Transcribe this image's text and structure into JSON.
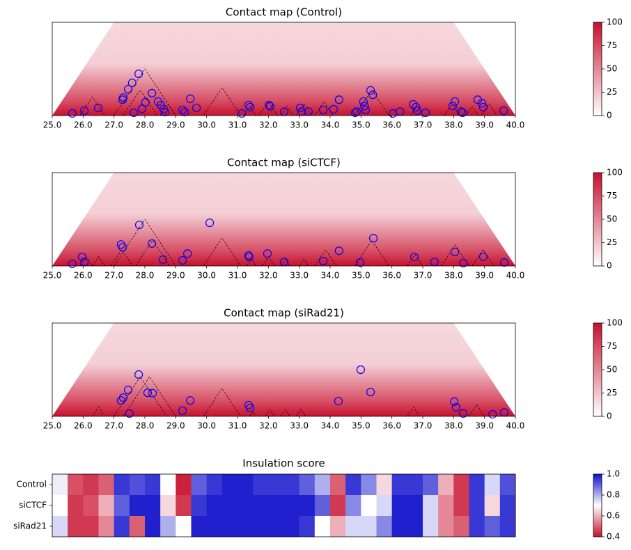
{
  "chart_data": [
    {
      "type": "contactmap",
      "title": "Contact map (Control)",
      "xlim": [
        25,
        40
      ],
      "xticks": [
        {
          "value": 25,
          "label": "25.0"
        },
        {
          "value": 26,
          "label": "26.0"
        },
        {
          "value": 27,
          "label": "27.0"
        },
        {
          "value": 28,
          "label": "28.0"
        },
        {
          "value": 29,
          "label": "29.0"
        },
        {
          "value": 30,
          "label": "30.0"
        },
        {
          "value": 31,
          "label": "31.0"
        },
        {
          "value": 32,
          "label": "32.0"
        },
        {
          "value": 33,
          "label": "33.0"
        },
        {
          "value": 34,
          "label": "34.0"
        },
        {
          "value": 35,
          "label": "35.0"
        },
        {
          "value": 36,
          "label": "36.0"
        },
        {
          "value": 37,
          "label": "37.0"
        },
        {
          "value": 38,
          "label": "38.0"
        },
        {
          "value": 39,
          "label": "39.0"
        },
        {
          "value": 40,
          "label": "40.0"
        }
      ],
      "ylim": [
        0,
        4
      ],
      "zlim": [
        0,
        100
      ],
      "zticks": [
        0,
        25,
        50,
        75,
        100
      ],
      "colormap": [
        "#ffffff",
        "#c8102e"
      ],
      "loops": {
        "color": "#0000ff",
        "x": [
          25.65,
          26.04,
          26.49,
          27.28,
          27.3,
          27.46,
          27.59,
          27.8,
          27.64,
          27.91,
          28.02,
          28.23,
          28.43,
          28.52,
          28.61,
          28.65,
          29.22,
          29.29,
          29.47,
          29.67,
          31.14,
          31.36,
          31.41,
          32.02,
          32.06,
          32.51,
          33.03,
          33.08,
          33.3,
          33.78,
          34.11,
          34.29,
          34.81,
          34.86,
          35.08,
          35.11,
          35.15,
          35.31,
          35.38,
          36.03,
          36.26,
          36.69,
          36.78,
          36.82,
          37.09,
          37.97,
          38.04,
          38.24,
          38.29,
          38.78,
          38.92,
          38.96,
          39.62
        ],
        "y": [
          0.09,
          0.21,
          0.33,
          0.68,
          0.77,
          1.13,
          1.4,
          1.79,
          0.12,
          0.29,
          0.57,
          0.96,
          0.6,
          0.45,
          0.27,
          0.15,
          0.24,
          0.15,
          0.72,
          0.33,
          0.09,
          0.45,
          0.36,
          0.45,
          0.39,
          0.17,
          0.33,
          0.17,
          0.17,
          0.24,
          0.27,
          0.68,
          0.12,
          0.17,
          0.6,
          0.41,
          0.24,
          1.08,
          0.89,
          0.09,
          0.17,
          0.48,
          0.36,
          0.21,
          0.12,
          0.41,
          0.6,
          0.17,
          0.12,
          0.68,
          0.53,
          0.36,
          0.21
        ]
      },
      "tads": [
        [
          25.9,
          26.7
        ],
        [
          27.0,
          29.0
        ],
        [
          27.3,
          28.4
        ],
        [
          28.5,
          29.0
        ],
        [
          29.9,
          31.1
        ],
        [
          31.2,
          31.6
        ],
        [
          31.7,
          32.3
        ],
        [
          32.4,
          32.8
        ],
        [
          32.9,
          33.4
        ],
        [
          33.5,
          34.1
        ],
        [
          34.8,
          35.9
        ],
        [
          36.6,
          37.0
        ],
        [
          37.7,
          38.2
        ],
        [
          38.4,
          38.8
        ],
        [
          38.9,
          39.4
        ]
      ]
    },
    {
      "type": "contactmap",
      "title": "Contact map (siCTCF)",
      "xlim": [
        25,
        40
      ],
      "xticks": [
        {
          "value": 25,
          "label": "25.0"
        },
        {
          "value": 26,
          "label": "26.0"
        },
        {
          "value": 27,
          "label": "27.0"
        },
        {
          "value": 28,
          "label": "28.0"
        },
        {
          "value": 29,
          "label": "29.0"
        },
        {
          "value": 30,
          "label": "30.0"
        },
        {
          "value": 31,
          "label": "31.0"
        },
        {
          "value": 32,
          "label": "32.0"
        },
        {
          "value": 33,
          "label": "33.0"
        },
        {
          "value": 34,
          "label": "34.0"
        },
        {
          "value": 35,
          "label": "35.0"
        },
        {
          "value": 36,
          "label": "36.0"
        },
        {
          "value": 37,
          "label": "37.0"
        },
        {
          "value": 38,
          "label": "38.0"
        },
        {
          "value": 39,
          "label": "39.0"
        },
        {
          "value": 40,
          "label": "40.0"
        }
      ],
      "ylim": [
        0,
        4
      ],
      "zlim": [
        0,
        100
      ],
      "zticks": [
        0,
        25,
        50,
        75,
        100
      ],
      "colormap": [
        "#ffffff",
        "#c8102e"
      ],
      "loops": {
        "color": "#0000ff",
        "x": [
          25.65,
          25.97,
          26.04,
          27.23,
          27.28,
          27.82,
          28.23,
          28.59,
          29.22,
          29.38,
          30.1,
          31.36,
          31.38,
          31.97,
          32.51,
          33.78,
          34.29,
          34.97,
          35.4,
          36.73,
          37.38,
          38.04,
          38.31,
          38.96,
          39.64
        ],
        "y": [
          0.09,
          0.39,
          0.17,
          0.92,
          0.8,
          1.76,
          0.96,
          0.27,
          0.24,
          0.53,
          1.85,
          0.45,
          0.39,
          0.53,
          0.17,
          0.21,
          0.65,
          0.15,
          1.19,
          0.39,
          0.17,
          0.6,
          0.12,
          0.39,
          0.15
        ]
      },
      "tads": [
        [
          25.9,
          26.3
        ],
        [
          26.3,
          26.7
        ],
        [
          26.9,
          27.6
        ],
        [
          27.7,
          28.8
        ],
        [
          27.0,
          29.0
        ],
        [
          29.9,
          31.1
        ],
        [
          31.3,
          31.6
        ],
        [
          31.8,
          32.2
        ],
        [
          32.4,
          32.7
        ],
        [
          33.0,
          33.3
        ],
        [
          33.5,
          34.2
        ],
        [
          34.8,
          35.9
        ],
        [
          36.5,
          37.0
        ],
        [
          37.6,
          38.5
        ],
        [
          38.6,
          39.3
        ]
      ]
    },
    {
      "type": "contactmap",
      "title": "Contact map (siRad21)",
      "xlim": [
        25,
        40
      ],
      "xticks": [
        {
          "value": 25,
          "label": "25.0"
        },
        {
          "value": 26,
          "label": "26.0"
        },
        {
          "value": 27,
          "label": "27.0"
        },
        {
          "value": 28,
          "label": "28.0"
        },
        {
          "value": 29,
          "label": "29.0"
        },
        {
          "value": 30,
          "label": "30.0"
        },
        {
          "value": 31,
          "label": "31.0"
        },
        {
          "value": 32,
          "label": "32.0"
        },
        {
          "value": 33,
          "label": "33.0"
        },
        {
          "value": 34,
          "label": "34.0"
        },
        {
          "value": 35,
          "label": "35.0"
        },
        {
          "value": 36,
          "label": "36.0"
        },
        {
          "value": 37,
          "label": "37.0"
        },
        {
          "value": 38,
          "label": "38.0"
        },
        {
          "value": 39,
          "label": "39.0"
        },
        {
          "value": 40,
          "label": "40.0"
        }
      ],
      "ylim": [
        0,
        4
      ],
      "zlim": [
        0,
        100
      ],
      "zticks": [
        0,
        25,
        50,
        75,
        100
      ],
      "colormap": [
        "#ffffff",
        "#c8102e"
      ],
      "loops": {
        "color": "#0000ff",
        "x": [
          27.23,
          27.3,
          27.46,
          27.8,
          27.5,
          28.09,
          28.25,
          29.22,
          29.47,
          31.36,
          31.41,
          34.27,
          34.99,
          35.31,
          38.02,
          38.08,
          38.31,
          39.26,
          39.64
        ],
        "y": [
          0.68,
          0.8,
          1.13,
          1.79,
          0.12,
          1.01,
          0.99,
          0.24,
          0.68,
          0.48,
          0.36,
          0.65,
          2.0,
          1.04,
          0.63,
          0.39,
          0.12,
          0.09,
          0.17
        ]
      },
      "tads": [
        [
          26.3,
          26.7
        ],
        [
          27.0,
          28.7
        ],
        [
          27.3,
          29.0
        ],
        [
          29.9,
          31.1
        ],
        [
          31.4,
          31.6
        ],
        [
          31.9,
          32.2
        ],
        [
          32.4,
          32.7
        ],
        [
          32.9,
          33.2
        ],
        [
          36.5,
          36.9
        ],
        [
          38.5,
          39.0
        ]
      ]
    },
    {
      "type": "heatmap",
      "title": "Insulation score",
      "rows": [
        "Control",
        "siCTCF",
        "siRad21"
      ],
      "xlim": [
        25,
        40
      ],
      "zlim": [
        0.4,
        1
      ],
      "zticks": [
        0.4,
        0.6,
        0.8,
        {
          "value": 1,
          "label": "1.0"
        }
      ],
      "colormap": [
        "#c8102e",
        "#ffffff",
        "#1010cc"
      ],
      "values": [
        [
          0.72,
          0.48,
          0.45,
          0.5,
          0.95,
          0.92,
          0.95,
          0.7,
          0.42,
          0.9,
          0.95,
          0.98,
          0.98,
          0.95,
          0.95,
          0.95,
          0.9,
          0.8,
          0.5,
          0.95,
          0.85,
          0.65,
          0.95,
          0.95,
          0.9,
          0.6,
          0.45,
          0.95,
          0.75,
          0.92
        ],
        [
          0.7,
          0.45,
          0.48,
          0.6,
          0.9,
          0.98,
          0.98,
          0.65,
          0.45,
          0.95,
          0.98,
          0.98,
          0.98,
          0.98,
          0.98,
          0.98,
          0.98,
          0.9,
          0.45,
          0.85,
          0.7,
          0.75,
          0.98,
          0.98,
          0.75,
          0.55,
          0.45,
          0.95,
          0.65,
          0.95
        ],
        [
          0.75,
          0.45,
          0.45,
          0.55,
          0.95,
          0.5,
          0.98,
          0.8,
          0.7,
          0.98,
          0.98,
          0.98,
          0.98,
          0.98,
          0.98,
          0.98,
          0.95,
          0.7,
          0.6,
          0.75,
          0.75,
          0.85,
          0.98,
          0.98,
          0.75,
          0.55,
          0.5,
          0.95,
          0.9,
          0.95
        ]
      ]
    }
  ]
}
